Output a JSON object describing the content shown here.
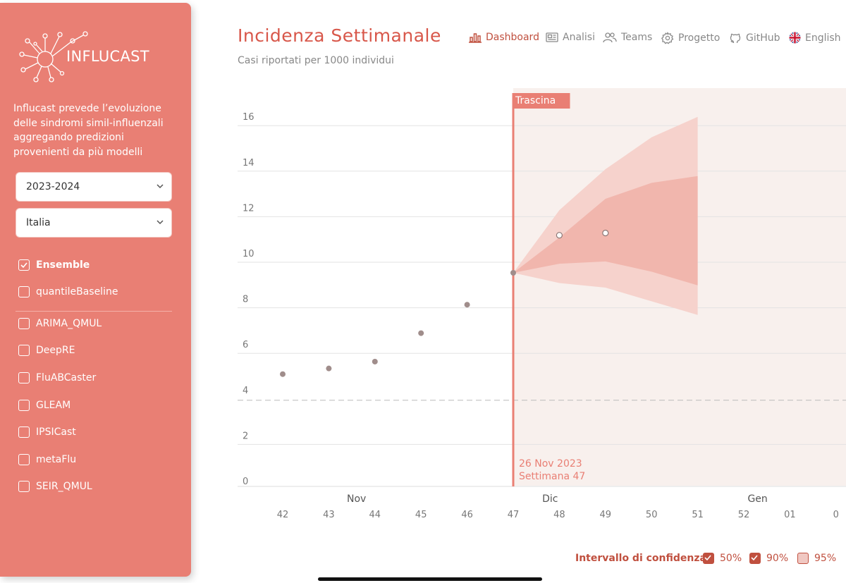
{
  "app": {
    "name": "INFLUCAST",
    "description": "Influcast prevede l’evoluzione delle sindromi simil-influenzali aggregando predizioni provenienti da più modelli"
  },
  "selects": {
    "season": "2023-2024",
    "region": "Italia"
  },
  "models": [
    {
      "label": "Ensemble",
      "checked": true
    },
    {
      "label": "quantileBaseline",
      "checked": false
    },
    {
      "label": "ARIMA_QMUL",
      "checked": false
    },
    {
      "label": "DeepRE",
      "checked": false
    },
    {
      "label": "FluABCaster",
      "checked": false
    },
    {
      "label": "GLEAM",
      "checked": false
    },
    {
      "label": "IPSICast",
      "checked": false
    },
    {
      "label": "metaFlu",
      "checked": false
    },
    {
      "label": "SEIR_QMUL",
      "checked": false
    }
  ],
  "header": {
    "title": "Incidenza Settimanale",
    "subtitle": "Casi riportati per 1000 individui"
  },
  "nav": {
    "dashboard": "Dashboard",
    "analisi": "Analisi",
    "teams": "Teams",
    "progetto": "Progetto",
    "github": "GitHub",
    "english": "English"
  },
  "legend": {
    "label": "Intervallo di confidenza:",
    "ci50": "50%",
    "ci90": "90%",
    "ci95": "95%"
  },
  "colors": {
    "accent": "#e97f74",
    "title": "#d8574a",
    "band_outer": "#f6d2cc",
    "band_inner": "#f1b6ad"
  },
  "chart_data": {
    "type": "line",
    "y_ticks": [
      0,
      2,
      4,
      6,
      8,
      10,
      12,
      14,
      16
    ],
    "ylim": [
      0,
      16.5
    ],
    "x_weeks": [
      "42",
      "43",
      "44",
      "45",
      "46",
      "47",
      "48",
      "49",
      "50",
      "51",
      "52",
      "01",
      "0"
    ],
    "month_labels": [
      {
        "label": "Nov",
        "week": 43.6
      },
      {
        "label": "Dic",
        "week": 47.8
      },
      {
        "label": "Gen",
        "week": 52.3
      }
    ],
    "threshold": 4,
    "drag_label": "Trascina",
    "current_date": "26 Nov 2023",
    "current_week_label": "Settimana 47",
    "current_week": 47,
    "observed": [
      {
        "week": 42,
        "value": 4.9
      },
      {
        "week": 43,
        "value": 5.15
      },
      {
        "week": 44,
        "value": 5.45
      },
      {
        "week": 45,
        "value": 6.7
      },
      {
        "week": 46,
        "value": 7.95
      },
      {
        "week": 47,
        "value": 9.35
      }
    ],
    "forecast": [
      {
        "week": 48,
        "value": 11.0
      },
      {
        "week": 49,
        "value": 11.1
      }
    ],
    "band_90": {
      "weeks": [
        47,
        48,
        49,
        50,
        51
      ],
      "lower": [
        9.35,
        8.9,
        8.7,
        8.1,
        7.5
      ],
      "upper": [
        9.35,
        12.1,
        13.9,
        15.3,
        16.2
      ]
    },
    "band_50": {
      "weeks": [
        47,
        48,
        49,
        50,
        51
      ],
      "lower": [
        9.35,
        9.75,
        9.85,
        9.4,
        8.8
      ],
      "upper": [
        9.35,
        10.9,
        12.6,
        13.3,
        13.6
      ]
    }
  }
}
